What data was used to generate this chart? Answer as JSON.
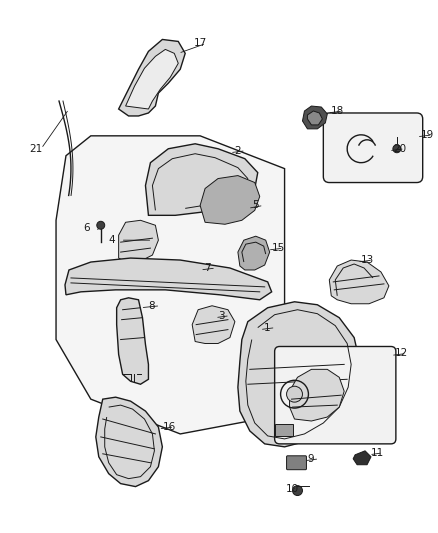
{
  "background_color": "#ffffff",
  "fig_width": 4.38,
  "fig_height": 5.33,
  "dpi": 100,
  "line_color": "#1a1a1a",
  "label_fontsize": 7.5,
  "part_fill": "#d8d8d8",
  "part_fill_light": "#ececec",
  "part_fill_dark": "#b0b0b0",
  "panel_fill": "#f5f5f5",
  "box_fill": "#f2f2f2"
}
